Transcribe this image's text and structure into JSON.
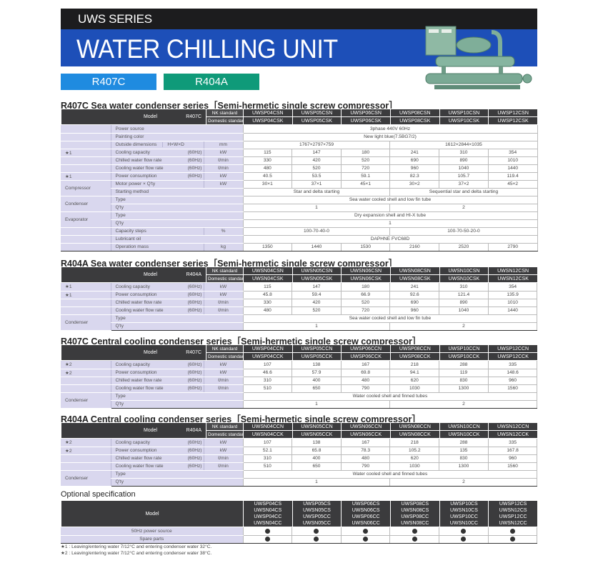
{
  "banner": {
    "series": "UWS SERIES",
    "title": "WATER CHILLING UNIT",
    "tags": [
      "R407C",
      "R404A"
    ],
    "colors": {
      "black": "#1c1c1e",
      "blue": "#1d4fb8",
      "r407c": "#1f8be0",
      "r404a": "#0f9a79"
    }
  },
  "tables": [
    {
      "title": "R407C Sea water condenser series［Semi-hermetic single screw compressor］",
      "model_label": "Model",
      "refrigerant": "R407C",
      "nk_label": "NK standard",
      "dom_label": "Domestic standard",
      "nk_models": [
        "UWSP04CSN",
        "UWSP05CSN",
        "UWSP06CSN",
        "UWSP08CSN",
        "UWSP10CSN",
        "UWSP12CSN"
      ],
      "dom_models": [
        "UWSP04CSK",
        "UWSP05CSK",
        "UWSP06CSK",
        "UWSP08CSK",
        "UWSP10CSK",
        "UWSP12CSK"
      ],
      "rows": [
        {
          "c1": "",
          "label": "Power source",
          "hz": "",
          "unit": "",
          "values": [
            [
              "3phase 440V 60Hz",
              6
            ]
          ],
          "merge": true
        },
        {
          "c1": "",
          "label": "Painting color",
          "hz": "",
          "unit": "",
          "values": [
            [
              "New light blue(7.5BG7/2)",
              6
            ]
          ],
          "merge": true
        },
        {
          "c1": "",
          "label": "Outside dimensions",
          "sub": "H×W×D",
          "hz": "",
          "unit": "mm",
          "values": [
            [
              "1767×2797×759",
              3
            ],
            [
              "1612×2844×1035",
              3
            ]
          ]
        },
        {
          "c1": "★1",
          "label": "Cooling capacity",
          "hz": "(60Hz)",
          "unit": "kW",
          "values": [
            "115",
            "147",
            "180",
            "241",
            "310",
            "354"
          ]
        },
        {
          "c1": "",
          "label": "Chilled water flow rate",
          "hz": "(60Hz)",
          "unit": "ℓ/min",
          "values": [
            "330",
            "420",
            "520",
            "690",
            "890",
            "1010"
          ]
        },
        {
          "c1": "",
          "label": "Cooling water flow rate",
          "hz": "(60Hz)",
          "unit": "ℓ/min",
          "values": [
            "480",
            "520",
            "720",
            "960",
            "1040",
            "1440"
          ]
        },
        {
          "c1": "★1",
          "label": "Power consumption",
          "hz": "(60Hz)",
          "unit": "kW",
          "values": [
            "40.5",
            "53.5",
            "59.1",
            "82.3",
            "105.7",
            "119.4"
          ]
        },
        {
          "c1": "Compressor",
          "label": "Motor power × Q'ty",
          "hz": "",
          "unit": "kW",
          "values": [
            "30×1",
            "37×1",
            "45×1",
            "30×2",
            "37×2",
            "45×2"
          ]
        },
        {
          "c1": "Compressor",
          "label": "Starting method",
          "hz": "",
          "unit": "",
          "values": [
            [
              "Star and delta starting",
              3
            ],
            [
              "Sequential star and delta starting",
              3
            ]
          ],
          "merge": true
        },
        {
          "c1": "Condenser",
          "label": "Type",
          "hz": "",
          "unit": "",
          "values": [
            [
              "Sea water cooled shell and low fin tube",
              6
            ]
          ],
          "merge": true
        },
        {
          "c1": "Condenser",
          "label": "Q'ty",
          "hz": "",
          "unit": "",
          "values": [
            [
              "1",
              3
            ],
            [
              "2",
              3
            ]
          ],
          "merge": true
        },
        {
          "c1": "Evaporator",
          "label": "Type",
          "hz": "",
          "unit": "",
          "values": [
            [
              "Dry expansion shell and HI-X tube",
              6
            ]
          ],
          "merge": true
        },
        {
          "c1": "Evaporator",
          "label": "Q'ty",
          "hz": "",
          "unit": "",
          "values": [
            [
              "1",
              6
            ]
          ],
          "merge": true
        },
        {
          "c1": "",
          "label": "Capacity steps",
          "hz": "",
          "unit": "%",
          "values": [
            [
              "100-70-40-0",
              3
            ],
            [
              "100-70-50-20-0",
              3
            ]
          ]
        },
        {
          "c1": "",
          "label": "Lubricant oil",
          "hz": "",
          "unit": "",
          "values": [
            [
              "DAPHNE FVC68D",
              6
            ]
          ],
          "merge": true
        },
        {
          "c1": "",
          "label": "Operation mass",
          "hz": "",
          "unit": "kg",
          "values": [
            "1350",
            "1440",
            "1530",
            "2160",
            "2520",
            "2790"
          ]
        }
      ]
    },
    {
      "title": "R404A Sea water condenser series［Semi-hermetic single screw compressor］",
      "model_label": "Model",
      "refrigerant": "R404A",
      "nk_label": "NK standard",
      "dom_label": "Domestic standard",
      "nk_models": [
        "UWSN04CSN",
        "UWSN05CSN",
        "UWSN06CSN",
        "UWSN08CSN",
        "UWSN10CSN",
        "UWSN12CSN"
      ],
      "dom_models": [
        "UWSN04CSK",
        "UWSN05CSK",
        "UWSN06CSK",
        "UWSN08CSK",
        "UWSN10CSK",
        "UWSN12CSK"
      ],
      "rows": [
        {
          "c1": "★1",
          "label": "Cooling capacity",
          "hz": "(60Hz)",
          "unit": "kW",
          "values": [
            "115",
            "147",
            "180",
            "241",
            "310",
            "354"
          ]
        },
        {
          "c1": "★1",
          "label": "Power consumption",
          "hz": "(60Hz)",
          "unit": "kW",
          "values": [
            "45.8",
            "59.4",
            "66.9",
            "92.6",
            "121.4",
            "135.9"
          ]
        },
        {
          "c1": "",
          "label": "Chilled water flow rate",
          "hz": "(60Hz)",
          "unit": "ℓ/min",
          "values": [
            "330",
            "420",
            "520",
            "690",
            "890",
            "1010"
          ]
        },
        {
          "c1": "",
          "label": "Cooling water flow rate",
          "hz": "(60Hz)",
          "unit": "ℓ/min",
          "values": [
            "480",
            "520",
            "720",
            "960",
            "1040",
            "1440"
          ]
        },
        {
          "c1": "Condenser",
          "label": "Type",
          "hz": "",
          "unit": "",
          "values": [
            [
              "Sea water cooled shell and low fin tube",
              6
            ]
          ],
          "merge": true
        },
        {
          "c1": "Condenser",
          "label": "Q'ty",
          "hz": "",
          "unit": "",
          "values": [
            [
              "1",
              3
            ],
            [
              "2",
              3
            ]
          ],
          "merge": true
        }
      ]
    },
    {
      "title": "R407C Central cooling condenser series［Semi-hermetic single screw compressor］",
      "model_label": "Model",
      "refrigerant": "R407C",
      "nk_label": "NK standard",
      "dom_label": "Domestic standard",
      "nk_models": [
        "UWSP04CCN",
        "UWSP05CCN",
        "UWSP06CCN",
        "UWSP08CCN",
        "UWSP10CCN",
        "UWSP12CCN"
      ],
      "dom_models": [
        "UWSP04CCK",
        "UWSP05CCK",
        "UWSP06CCK",
        "UWSP08CCK",
        "UWSP10CCK",
        "UWSP12CCK"
      ],
      "rows": [
        {
          "c1": "★2",
          "label": "Cooling capacity",
          "hz": "(60Hz)",
          "unit": "kW",
          "values": [
            "107",
            "138",
            "167",
            "218",
            "288",
            "335"
          ]
        },
        {
          "c1": "★2",
          "label": "Power consumption",
          "hz": "(60Hz)",
          "unit": "kW",
          "values": [
            "46.6",
            "57.9",
            "69.8",
            "94.1",
            "119",
            "148.6"
          ]
        },
        {
          "c1": "",
          "label": "Chilled water flow rate",
          "hz": "(60Hz)",
          "unit": "ℓ/min",
          "values": [
            "310",
            "400",
            "480",
            "620",
            "830",
            "960"
          ]
        },
        {
          "c1": "",
          "label": "Cooling water flow rate",
          "hz": "(60Hz)",
          "unit": "ℓ/min",
          "values": [
            "510",
            "650",
            "790",
            "1030",
            "1300",
            "1560"
          ]
        },
        {
          "c1": "Condenser",
          "label": "Type",
          "hz": "",
          "unit": "",
          "values": [
            [
              "Water cooled shell and finned tubes",
              6
            ]
          ],
          "merge": true
        },
        {
          "c1": "Condenser",
          "label": "Q'ty",
          "hz": "",
          "unit": "",
          "values": [
            [
              "1",
              3
            ],
            [
              "2",
              3
            ]
          ],
          "merge": true
        }
      ]
    },
    {
      "title": "R404A Central cooling condenser series［Semi-hermetic single screw compressor］",
      "model_label": "Model",
      "refrigerant": "R404A",
      "nk_label": "NK standard",
      "dom_label": "Domestic standard",
      "nk_models": [
        "UWSN04CCN",
        "UWSN05CCN",
        "UWSN06CCN",
        "UWSN08CCN",
        "UWSN10CCN",
        "UWSN12CCN"
      ],
      "dom_models": [
        "UWSN04CCK",
        "UWSN05CCK",
        "UWSN06CCK",
        "UWSN08CCK",
        "UWSN10CCK",
        "UWSN12CCK"
      ],
      "rows": [
        {
          "c1": "★2",
          "label": "Cooling capacity",
          "hz": "(60Hz)",
          "unit": "kW",
          "values": [
            "107",
            "138",
            "167",
            "218",
            "288",
            "335"
          ]
        },
        {
          "c1": "★2",
          "label": "Power consumption",
          "hz": "(60Hz)",
          "unit": "kW",
          "values": [
            "52.1",
            "65.8",
            "78.3",
            "105.2",
            "135",
            "167.8"
          ]
        },
        {
          "c1": "",
          "label": "Chilled water flow rate",
          "hz": "(60Hz)",
          "unit": "ℓ/min",
          "values": [
            "310",
            "400",
            "480",
            "620",
            "830",
            "960"
          ]
        },
        {
          "c1": "",
          "label": "Cooling water flow rate",
          "hz": "(60Hz)",
          "unit": "ℓ/min",
          "values": [
            "510",
            "650",
            "790",
            "1030",
            "1300",
            "1560"
          ]
        },
        {
          "c1": "Condenser",
          "label": "Type",
          "hz": "",
          "unit": "",
          "values": [
            [
              "Water cooled shell and finned tubes",
              6
            ]
          ],
          "merge": true
        },
        {
          "c1": "Condenser",
          "label": "Q'ty",
          "hz": "",
          "unit": "",
          "values": [
            [
              "1",
              3
            ],
            [
              "2",
              3
            ]
          ],
          "merge": true
        }
      ]
    }
  ],
  "optional": {
    "title": "Optional specification",
    "model_label": "Model",
    "models": [
      [
        "UWSP04CS",
        "UWSN04CS",
        "UWSP04CC",
        "UWSN04CC"
      ],
      [
        "UWSP05CS",
        "UWSN05CS",
        "UWSP05CC",
        "UWSN05CC"
      ],
      [
        "UWSP06CS",
        "UWSN06CS",
        "UWSP06CC",
        "UWSN06CC"
      ],
      [
        "UWSP08CS",
        "UWSN08CS",
        "UWSP08CC",
        "UWSN08CC"
      ],
      [
        "UWSP10CS",
        "UWSN10CS",
        "UWSP10CC",
        "UWSN10CC"
      ],
      [
        "UWSP12CS",
        "UWSN12CS",
        "UWSP12CC",
        "UWSN12CC"
      ]
    ],
    "rows": [
      {
        "label": "50Hz power source",
        "values": [
          true,
          true,
          true,
          true,
          true,
          true
        ]
      },
      {
        "label": "Spare parts",
        "values": [
          true,
          true,
          true,
          true,
          true,
          true
        ]
      }
    ]
  },
  "notes": [
    "★1 : Leaving/entering water 7/12°C and entering condenser water 32°C.",
    "★2 : Leaving/entering water 7/12°C and entering condenser water 38°C."
  ]
}
